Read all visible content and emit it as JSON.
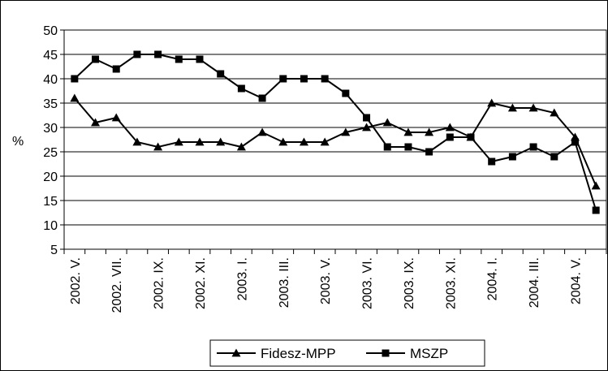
{
  "chart_data": {
    "type": "line",
    "title": "",
    "xlabel": "",
    "ylabel": "%",
    "ylim": [
      5,
      50
    ],
    "yticks": [
      5,
      10,
      15,
      20,
      25,
      30,
      35,
      40,
      45,
      50
    ],
    "grid": "horizontal",
    "legend_position": "bottom",
    "x_tick_labels": [
      "2002. V.",
      "2002. VII.",
      "2002. IX.",
      "2002. XI.",
      "2003. I.",
      "2003. III.",
      "2003. V.",
      "2003. VI.",
      "2003. IX.",
      "2003. XI.",
      "2004. I.",
      "2004. III.",
      "2004. V."
    ],
    "x_tick_label_every": 2,
    "series": [
      {
        "name": "Fidesz-MPP",
        "marker": "triangle",
        "color": "#000000",
        "values": [
          36,
          31,
          32,
          27,
          26,
          27,
          27,
          27,
          26,
          29,
          27,
          27,
          27,
          29,
          30,
          31,
          29,
          29,
          30,
          28,
          35,
          34,
          34,
          33,
          28,
          18
        ]
      },
      {
        "name": "MSZP",
        "marker": "square",
        "color": "#000000",
        "values": [
          40,
          44,
          42,
          45,
          45,
          44,
          44,
          41,
          38,
          36,
          40,
          40,
          40,
          37,
          32,
          26,
          26,
          25,
          28,
          28,
          23,
          24,
          26,
          24,
          27,
          13
        ]
      }
    ]
  }
}
